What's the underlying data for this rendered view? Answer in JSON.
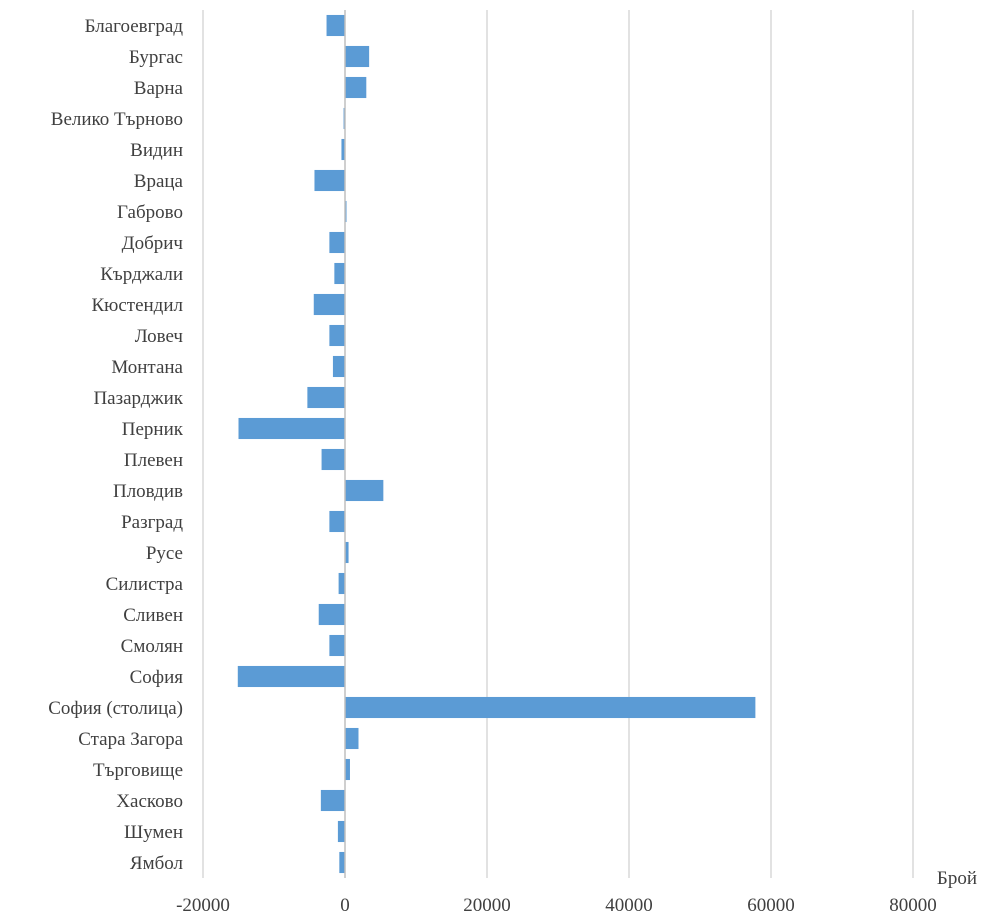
{
  "chart_data": {
    "type": "bar",
    "orientation": "horizontal",
    "categories": [
      "Благоевград",
      "Бургас",
      "Варна",
      "Велико Търново",
      "Видин",
      "Враца",
      "Габрово",
      "Добрич",
      "Кърджали",
      "Кюстендил",
      "Ловеч",
      "Монтана",
      "Пазарджик",
      "Перник",
      "Плевен",
      "Пловдив",
      "Разград",
      "Русе",
      "Силистра",
      "Сливен",
      "Смолян",
      "София",
      "София (столица)",
      "Стара Загора",
      "Търговище",
      "Хасково",
      "Шумен",
      "Ямбол"
    ],
    "values": [
      -2600,
      3400,
      3000,
      -200,
      -500,
      -4300,
      200,
      -2200,
      -1500,
      -4400,
      -2200,
      -1700,
      -5300,
      -15000,
      -3300,
      5400,
      -2200,
      500,
      -900,
      -3700,
      -2200,
      -15100,
      57800,
      1900,
      700,
      -3400,
      -1000,
      -800
    ],
    "xlim": [
      -20000,
      80000
    ],
    "xticks": [
      -20000,
      0,
      20000,
      40000,
      60000,
      80000
    ],
    "xtick_labels": [
      "-20000",
      "0",
      "20000",
      "40000",
      "60000",
      "80000"
    ],
    "unit_label": "Брой",
    "grid": true,
    "bar_color": "#5b9bd5",
    "grid_color": "#d9d9d9",
    "axis_color": "#bfbfbf"
  }
}
